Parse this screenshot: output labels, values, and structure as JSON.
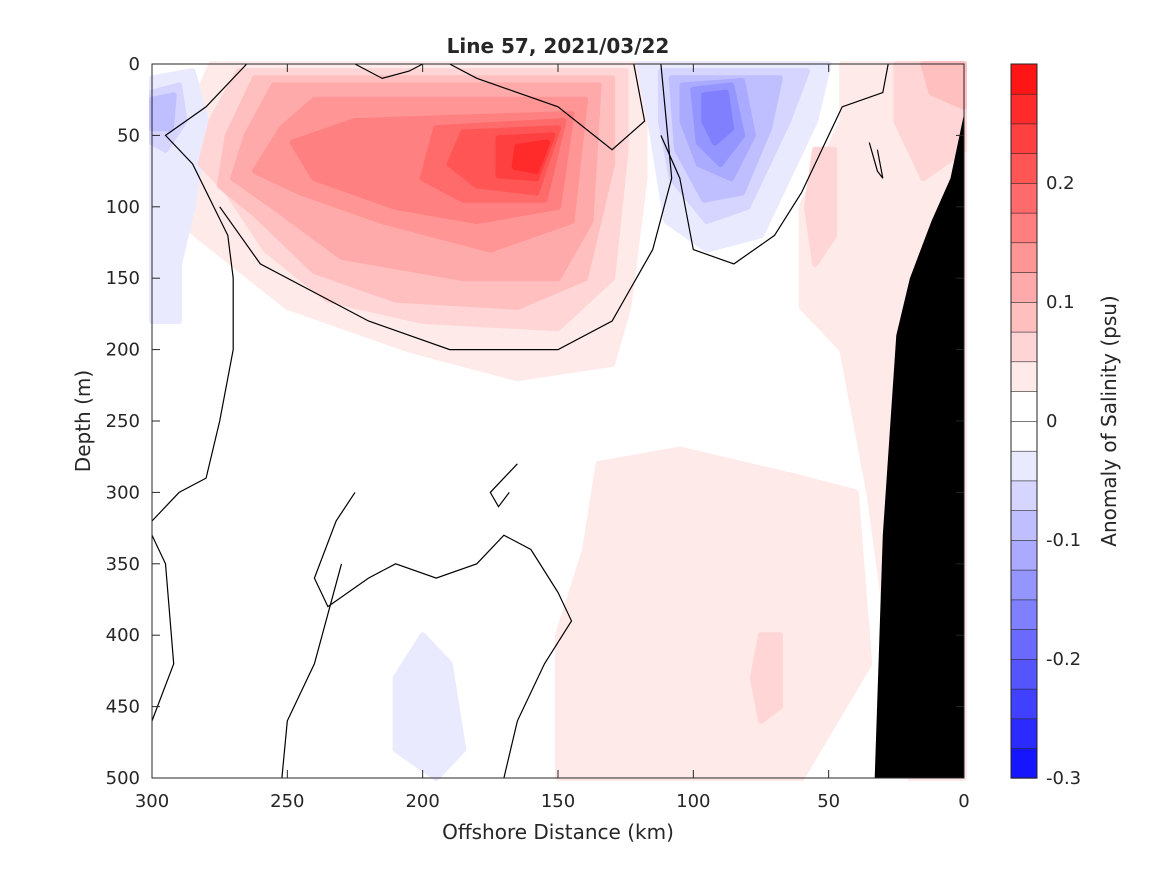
{
  "chart_data": {
    "type": "heatmap",
    "subtype": "filled-contour",
    "title": "Line 57, 2021/03/22",
    "xlabel": "Offshore Distance (km)",
    "ylabel": "Depth (m)",
    "colorbar_label": "Anomaly of Salinity (psu)",
    "xlim": [
      300,
      0
    ],
    "ylim": [
      0,
      500
    ],
    "x_reversed": true,
    "y_reversed": true,
    "x_ticks": [
      300,
      250,
      200,
      150,
      100,
      50,
      0
    ],
    "y_ticks": [
      0,
      50,
      100,
      150,
      200,
      250,
      300,
      350,
      400,
      450,
      500
    ],
    "colorbar_ticks": [
      0.2,
      0.1,
      0,
      -0.1,
      -0.2,
      -0.3
    ],
    "colorbar_tick_labels": [
      "0.2",
      "0.1",
      "0",
      "-0.1",
      "-0.2",
      "-0.3"
    ],
    "colorbar_range": [
      -0.3,
      0.3
    ],
    "colorbar_step": 0.025,
    "positive_color": "#ff0000",
    "negative_color": "#0000ff",
    "land_color": "#000000",
    "zero_contour_color": "#000000",
    "grid": false,
    "features": [
      {
        "kind": "positive",
        "level": 0.025,
        "points": [
          [
            278,
            0
          ],
          [
            118,
            0
          ],
          [
            118,
            80
          ],
          [
            124,
            170
          ],
          [
            130,
            210
          ],
          [
            165,
            220
          ],
          [
            205,
            200
          ],
          [
            250,
            170
          ],
          [
            290,
            110
          ],
          [
            295,
            70
          ],
          [
            285,
            30
          ]
        ]
      },
      {
        "kind": "positive",
        "level": 0.05,
        "points": [
          [
            268,
            5
          ],
          [
            125,
            5
          ],
          [
            125,
            60
          ],
          [
            130,
            150
          ],
          [
            150,
            185
          ],
          [
            200,
            180
          ],
          [
            235,
            165
          ],
          [
            258,
            130
          ],
          [
            272,
            90
          ],
          [
            282,
            70
          ],
          [
            278,
            40
          ]
        ]
      },
      {
        "kind": "positive",
        "level": 0.075,
        "points": [
          [
            262,
            10
          ],
          [
            130,
            10
          ],
          [
            130,
            70
          ],
          [
            140,
            150
          ],
          [
            165,
            170
          ],
          [
            210,
            165
          ],
          [
            240,
            145
          ],
          [
            262,
            105
          ],
          [
            275,
            85
          ],
          [
            272,
            50
          ]
        ]
      },
      {
        "kind": "positive",
        "level": 0.1,
        "points": [
          [
            255,
            15
          ],
          [
            135,
            15
          ],
          [
            138,
            110
          ],
          [
            150,
            150
          ],
          [
            185,
            150
          ],
          [
            230,
            135
          ],
          [
            255,
            100
          ],
          [
            270,
            80
          ],
          [
            265,
            50
          ]
        ]
      },
      {
        "kind": "positive",
        "level": 0.125,
        "points": [
          [
            240,
            25
          ],
          [
            140,
            25
          ],
          [
            145,
            110
          ],
          [
            175,
            130
          ],
          [
            215,
            110
          ],
          [
            245,
            90
          ],
          [
            262,
            75
          ],
          [
            252,
            45
          ]
        ]
      },
      {
        "kind": "positive",
        "level": 0.15,
        "points": [
          [
            225,
            40
          ],
          [
            145,
            35
          ],
          [
            150,
            100
          ],
          [
            180,
            110
          ],
          [
            210,
            100
          ],
          [
            240,
            80
          ],
          [
            248,
            55
          ]
        ]
      },
      {
        "kind": "positive",
        "level": 0.175,
        "points": [
          [
            195,
            45
          ],
          [
            148,
            40
          ],
          [
            155,
            95
          ],
          [
            185,
            95
          ],
          [
            200,
            80
          ]
        ]
      },
      {
        "kind": "positive",
        "level": 0.2,
        "points": [
          [
            185,
            48
          ],
          [
            150,
            45
          ],
          [
            158,
            90
          ],
          [
            180,
            85
          ],
          [
            190,
            70
          ]
        ]
      },
      {
        "kind": "positive",
        "level": 0.225,
        "points": [
          [
            172,
            52
          ],
          [
            152,
            50
          ],
          [
            158,
            80
          ],
          [
            172,
            78
          ]
        ]
      },
      {
        "kind": "positive",
        "level": 0.25,
        "points": [
          [
            165,
            58
          ],
          [
            154,
            55
          ],
          [
            158,
            75
          ],
          [
            166,
            72
          ]
        ]
      },
      {
        "kind": "positive",
        "level": 0.025,
        "points": [
          [
            45,
            0
          ],
          [
            0,
            0
          ],
          [
            0,
            500
          ],
          [
            20,
            500
          ],
          [
            25,
            440
          ],
          [
            35,
            300
          ],
          [
            45,
            200
          ],
          [
            60,
            170
          ],
          [
            60,
            100
          ],
          [
            45,
            40
          ]
        ]
      },
      {
        "kind": "positive",
        "level": 0.05,
        "points": [
          [
            25,
            0
          ],
          [
            0,
            0
          ],
          [
            0,
            60
          ],
          [
            15,
            80
          ],
          [
            25,
            40
          ]
        ]
      },
      {
        "kind": "positive",
        "level": 0.075,
        "points": [
          [
            15,
            0
          ],
          [
            0,
            0
          ],
          [
            0,
            30
          ],
          [
            12,
            20
          ]
        ]
      },
      {
        "kind": "positive",
        "level": 0.05,
        "points": [
          [
            55,
            60
          ],
          [
            48,
            60
          ],
          [
            48,
            120
          ],
          [
            55,
            140
          ],
          [
            58,
            100
          ]
        ]
      },
      {
        "kind": "positive",
        "level": 0.025,
        "points": [
          [
            135,
            280
          ],
          [
            105,
            270
          ],
          [
            60,
            290
          ],
          [
            40,
            300
          ],
          [
            35,
            420
          ],
          [
            60,
            500
          ],
          [
            150,
            500
          ],
          [
            150,
            400
          ],
          [
            140,
            340
          ]
        ]
      },
      {
        "kind": "positive",
        "level": 0.05,
        "points": [
          [
            75,
            400
          ],
          [
            68,
            400
          ],
          [
            68,
            450
          ],
          [
            75,
            460
          ],
          [
            78,
            430
          ]
        ]
      },
      {
        "kind": "negative",
        "level": -0.025,
        "points": [
          [
            120,
            0
          ],
          [
            50,
            0
          ],
          [
            55,
            40
          ],
          [
            75,
            120
          ],
          [
            95,
            130
          ],
          [
            110,
            110
          ],
          [
            115,
            50
          ]
        ]
      },
      {
        "kind": "negative",
        "level": -0.05,
        "points": [
          [
            112,
            5
          ],
          [
            58,
            5
          ],
          [
            65,
            40
          ],
          [
            80,
            100
          ],
          [
            95,
            110
          ],
          [
            108,
            80
          ],
          [
            112,
            40
          ]
        ]
      },
      {
        "kind": "negative",
        "level": -0.075,
        "points": [
          [
            108,
            10
          ],
          [
            68,
            10
          ],
          [
            72,
            45
          ],
          [
            82,
            90
          ],
          [
            96,
            95
          ],
          [
            106,
            60
          ]
        ]
      },
      {
        "kind": "negative",
        "level": -0.1,
        "points": [
          [
            104,
            15
          ],
          [
            82,
            12
          ],
          [
            78,
            50
          ],
          [
            86,
            80
          ],
          [
            98,
            70
          ],
          [
            104,
            40
          ]
        ]
      },
      {
        "kind": "negative",
        "level": -0.125,
        "points": [
          [
            100,
            18
          ],
          [
            86,
            15
          ],
          [
            82,
            50
          ],
          [
            90,
            70
          ],
          [
            98,
            55
          ]
        ]
      },
      {
        "kind": "negative",
        "level": -0.15,
        "points": [
          [
            96,
            22
          ],
          [
            88,
            20
          ],
          [
            86,
            45
          ],
          [
            92,
            55
          ],
          [
            96,
            40
          ]
        ]
      },
      {
        "kind": "negative",
        "level": -0.025,
        "points": [
          [
            300,
            10
          ],
          [
            285,
            5
          ],
          [
            280,
            40
          ],
          [
            285,
            100
          ],
          [
            290,
            140
          ],
          [
            290,
            180
          ],
          [
            300,
            180
          ]
        ]
      },
      {
        "kind": "negative",
        "level": -0.05,
        "points": [
          [
            300,
            20
          ],
          [
            290,
            15
          ],
          [
            288,
            40
          ],
          [
            295,
            60
          ],
          [
            300,
            55
          ]
        ]
      },
      {
        "kind": "negative",
        "level": -0.075,
        "points": [
          [
            300,
            25
          ],
          [
            292,
            22
          ],
          [
            293,
            45
          ],
          [
            300,
            45
          ]
        ]
      },
      {
        "kind": "negative",
        "level": -0.025,
        "points": [
          [
            200,
            400
          ],
          [
            190,
            420
          ],
          [
            185,
            480
          ],
          [
            195,
            500
          ],
          [
            210,
            480
          ],
          [
            210,
            430
          ]
        ]
      }
    ],
    "zero_contours": [
      [
        [
          300,
          320
        ],
        [
          290,
          300
        ],
        [
          280,
          290
        ],
        [
          275,
          250
        ],
        [
          270,
          200
        ],
        [
          270,
          150
        ],
        [
          272,
          120
        ],
        [
          285,
          70
        ],
        [
          295,
          50
        ],
        [
          280,
          30
        ],
        [
          265,
          0
        ]
      ],
      [
        [
          300,
          330
        ],
        [
          295,
          350
        ],
        [
          292,
          420
        ],
        [
          300,
          460
        ]
      ],
      [
        [
          225,
          0
        ],
        [
          215,
          10
        ],
        [
          205,
          5
        ],
        [
          200,
          0
        ]
      ],
      [
        [
          122,
          0
        ],
        [
          118,
          40
        ],
        [
          130,
          60
        ],
        [
          150,
          30
        ],
        [
          180,
          10
        ],
        [
          190,
          0
        ]
      ],
      [
        [
          112,
          0
        ],
        [
          108,
          80
        ],
        [
          115,
          130
        ],
        [
          130,
          180
        ],
        [
          150,
          200
        ],
        [
          190,
          200
        ],
        [
          220,
          180
        ],
        [
          260,
          140
        ],
        [
          275,
          100
        ]
      ],
      [
        [
          112,
          50
        ],
        [
          105,
          80
        ],
        [
          100,
          130
        ],
        [
          85,
          140
        ],
        [
          70,
          120
        ],
        [
          60,
          90
        ],
        [
          45,
          30
        ],
        [
          30,
          20
        ],
        [
          28,
          0
        ]
      ],
      [
        [
          35,
          55
        ],
        [
          32,
          75
        ],
        [
          30,
          80
        ],
        [
          32,
          60
        ]
      ],
      [
        [
          225,
          300
        ],
        [
          232,
          320
        ],
        [
          240,
          360
        ],
        [
          235,
          380
        ],
        [
          220,
          360
        ],
        [
          210,
          350
        ],
        [
          195,
          360
        ],
        [
          180,
          350
        ],
        [
          170,
          330
        ],
        [
          160,
          340
        ],
        [
          150,
          370
        ],
        [
          145,
          390
        ],
        [
          155,
          420
        ],
        [
          165,
          460
        ],
        [
          170,
          500
        ]
      ],
      [
        [
          165,
          280
        ],
        [
          175,
          300
        ],
        [
          172,
          310
        ],
        [
          168,
          300
        ]
      ],
      [
        [
          230,
          350
        ],
        [
          240,
          420
        ],
        [
          250,
          460
        ],
        [
          252,
          500
        ]
      ]
    ]
  }
}
